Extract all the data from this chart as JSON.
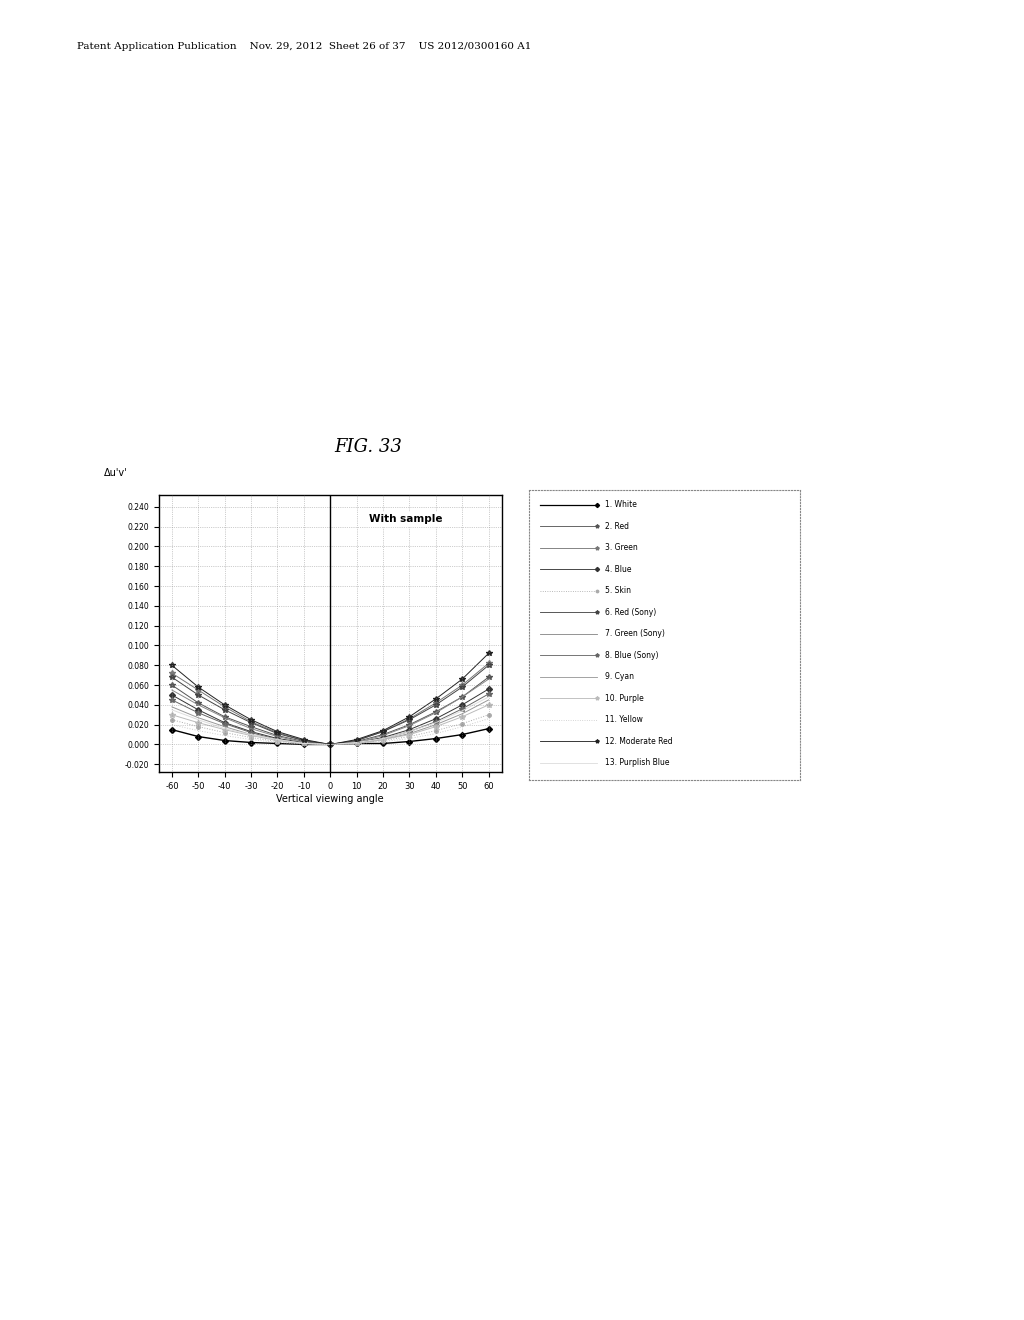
{
  "title": "FIG. 33",
  "header_text": "Patent Application Publication    Nov. 29, 2012  Sheet 26 of 37    US 2012/0300160 A1",
  "ylabel": "Δu'v'",
  "xlabel": "Vertical viewing angle",
  "annotation": "With sample",
  "x_ticks": [
    -60,
    -50,
    -40,
    -30,
    -20,
    -10,
    0,
    10,
    20,
    30,
    40,
    50,
    60
  ],
  "y_ticks": [
    -0.02,
    0.0,
    0.02,
    0.04,
    0.06,
    0.08,
    0.1,
    0.12,
    0.14,
    0.16,
    0.18,
    0.2,
    0.22,
    0.24
  ],
  "ylim": [
    -0.028,
    0.252
  ],
  "xlim": [
    -65,
    65
  ],
  "background_color": "#ffffff",
  "plot_bg_color": "#ffffff",
  "series": [
    {
      "label": "1. White",
      "color": "#000000",
      "marker": "D",
      "markersize": 3,
      "linestyle": "-",
      "linewidth": 1.0,
      "data_x": [
        -60,
        -50,
        -40,
        -30,
        -20,
        -10,
        0,
        10,
        20,
        30,
        40,
        50,
        60
      ],
      "data_y": [
        0.015,
        0.008,
        0.004,
        0.002,
        0.001,
        0.0,
        0.0,
        0.001,
        0.001,
        0.003,
        0.006,
        0.01,
        0.016
      ]
    },
    {
      "label": "2. Red",
      "color": "#555555",
      "marker": "*",
      "markersize": 4,
      "linestyle": "-",
      "linewidth": 0.7,
      "data_x": [
        -60,
        -50,
        -40,
        -30,
        -20,
        -10,
        0,
        10,
        20,
        30,
        40,
        50,
        60
      ],
      "data_y": [
        0.06,
        0.042,
        0.028,
        0.018,
        0.009,
        0.003,
        0.0,
        0.003,
        0.01,
        0.02,
        0.033,
        0.048,
        0.068
      ]
    },
    {
      "label": "3. Green",
      "color": "#777777",
      "marker": "*",
      "markersize": 4,
      "linestyle": "-",
      "linewidth": 0.7,
      "data_x": [
        -60,
        -50,
        -40,
        -30,
        -20,
        -10,
        0,
        10,
        20,
        30,
        40,
        50,
        60
      ],
      "data_y": [
        0.072,
        0.055,
        0.038,
        0.023,
        0.012,
        0.004,
        0.0,
        0.004,
        0.013,
        0.026,
        0.042,
        0.06,
        0.082
      ]
    },
    {
      "label": "4. Blue",
      "color": "#333333",
      "marker": "D",
      "markersize": 3,
      "linestyle": "-",
      "linewidth": 0.7,
      "data_x": [
        -60,
        -50,
        -40,
        -30,
        -20,
        -10,
        0,
        10,
        20,
        30,
        40,
        50,
        60
      ],
      "data_y": [
        0.05,
        0.035,
        0.022,
        0.013,
        0.006,
        0.002,
        0.0,
        0.002,
        0.007,
        0.015,
        0.026,
        0.04,
        0.056
      ]
    },
    {
      "label": "5. Skin",
      "color": "#aaaaaa",
      "marker": "o",
      "markersize": 2.5,
      "linestyle": ":",
      "linewidth": 0.7,
      "data_x": [
        -60,
        -50,
        -40,
        -30,
        -20,
        -10,
        0,
        10,
        20,
        30,
        40,
        50,
        60
      ],
      "data_y": [
        0.025,
        0.018,
        0.012,
        0.007,
        0.003,
        0.001,
        0.0,
        0.001,
        0.004,
        0.008,
        0.014,
        0.021,
        0.03
      ]
    },
    {
      "label": "6. Red (Sony)",
      "color": "#444444",
      "marker": "*",
      "markersize": 4,
      "linestyle": "-",
      "linewidth": 0.7,
      "data_x": [
        -60,
        -50,
        -40,
        -30,
        -20,
        -10,
        0,
        10,
        20,
        30,
        40,
        50,
        60
      ],
      "data_y": [
        0.068,
        0.05,
        0.035,
        0.022,
        0.011,
        0.004,
        0.0,
        0.004,
        0.013,
        0.025,
        0.04,
        0.058,
        0.08
      ]
    },
    {
      "label": "7. Green (Sony)",
      "color": "#888888",
      "marker": "None",
      "markersize": 3,
      "linestyle": "-",
      "linewidth": 0.7,
      "data_x": [
        -60,
        -50,
        -40,
        -30,
        -20,
        -10,
        0,
        10,
        20,
        30,
        40,
        50,
        60
      ],
      "data_y": [
        0.055,
        0.04,
        0.027,
        0.016,
        0.008,
        0.002,
        0.0,
        0.002,
        0.009,
        0.019,
        0.032,
        0.048,
        0.066
      ]
    },
    {
      "label": "8. Blue (Sony)",
      "color": "#666666",
      "marker": "*",
      "markersize": 4,
      "linestyle": "-",
      "linewidth": 0.7,
      "data_x": [
        -60,
        -50,
        -40,
        -30,
        -20,
        -10,
        0,
        10,
        20,
        30,
        40,
        50,
        60
      ],
      "data_y": [
        0.045,
        0.032,
        0.021,
        0.012,
        0.005,
        0.001,
        0.0,
        0.001,
        0.006,
        0.013,
        0.023,
        0.036,
        0.051
      ]
    },
    {
      "label": "9. Cyan",
      "color": "#999999",
      "marker": "None",
      "markersize": 3,
      "linestyle": "-",
      "linewidth": 0.7,
      "data_x": [
        -60,
        -50,
        -40,
        -30,
        -20,
        -10,
        0,
        10,
        20,
        30,
        40,
        50,
        60
      ],
      "data_y": [
        0.038,
        0.027,
        0.018,
        0.01,
        0.005,
        0.001,
        0.0,
        0.001,
        0.005,
        0.011,
        0.02,
        0.031,
        0.045
      ]
    },
    {
      "label": "10. Purple",
      "color": "#bbbbbb",
      "marker": "*",
      "markersize": 4,
      "linestyle": "-",
      "linewidth": 0.7,
      "data_x": [
        -60,
        -50,
        -40,
        -30,
        -20,
        -10,
        0,
        10,
        20,
        30,
        40,
        50,
        60
      ],
      "data_y": [
        0.03,
        0.022,
        0.015,
        0.009,
        0.004,
        0.001,
        0.0,
        0.001,
        0.005,
        0.01,
        0.018,
        0.028,
        0.04
      ]
    },
    {
      "label": "11. Yellow",
      "color": "#cccccc",
      "marker": "None",
      "markersize": 3,
      "linestyle": ":",
      "linewidth": 0.7,
      "data_x": [
        -60,
        -50,
        -40,
        -30,
        -20,
        -10,
        0,
        10,
        20,
        30,
        40,
        50,
        60
      ],
      "data_y": [
        0.02,
        0.014,
        0.009,
        0.005,
        0.002,
        0.001,
        0.0,
        0.001,
        0.003,
        0.006,
        0.011,
        0.018,
        0.026
      ]
    },
    {
      "label": "12. Moderate Red",
      "color": "#222222",
      "marker": "*",
      "markersize": 4,
      "linestyle": "-",
      "linewidth": 0.7,
      "data_x": [
        -60,
        -50,
        -40,
        -30,
        -20,
        -10,
        0,
        10,
        20,
        30,
        40,
        50,
        60
      ],
      "data_y": [
        0.08,
        0.058,
        0.04,
        0.025,
        0.013,
        0.005,
        0.0,
        0.005,
        0.014,
        0.028,
        0.046,
        0.066,
        0.092
      ]
    },
    {
      "label": "13. Purplish Blue",
      "color": "#dddddd",
      "marker": "None",
      "markersize": 3,
      "linestyle": "-",
      "linewidth": 0.7,
      "data_x": [
        -60,
        -50,
        -40,
        -30,
        -20,
        -10,
        0,
        10,
        20,
        30,
        40,
        50,
        60
      ],
      "data_y": [
        0.035,
        0.025,
        0.016,
        0.01,
        0.005,
        0.001,
        0.0,
        0.002,
        0.006,
        0.013,
        0.022,
        0.034,
        0.048
      ]
    }
  ]
}
